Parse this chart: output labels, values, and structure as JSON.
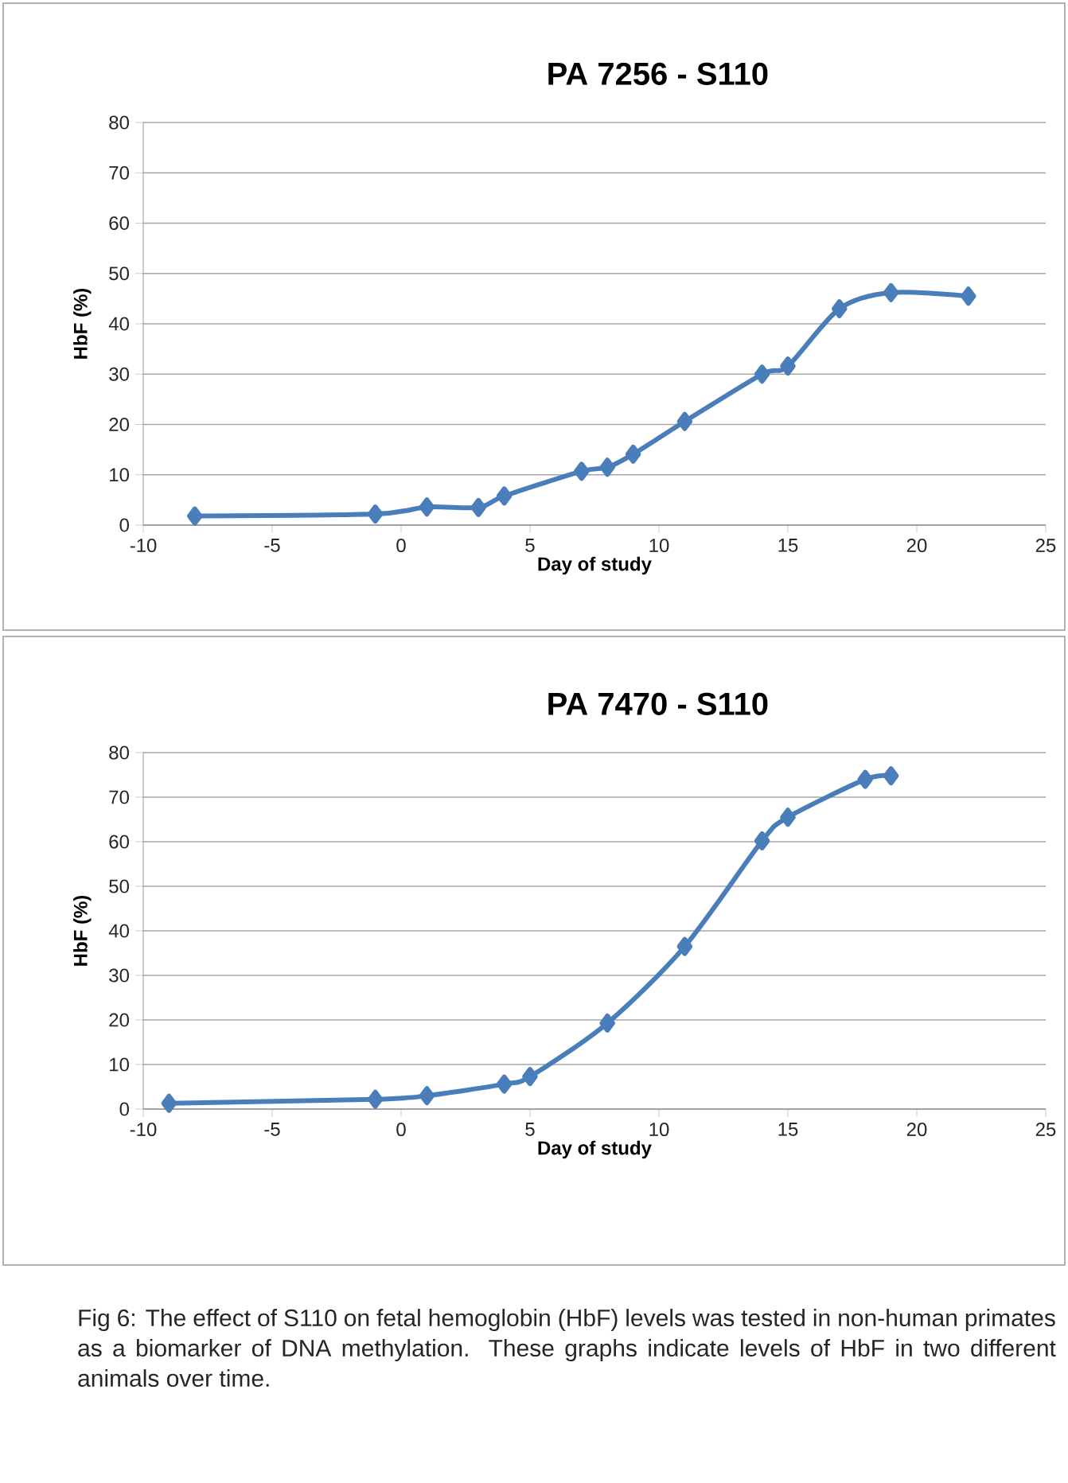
{
  "chart_data": [
    {
      "type": "line",
      "title": "PA 7256 - S110",
      "xlabel": "Day of study",
      "ylabel": "HbF (%)",
      "color": "#4a7ebb",
      "marker": "diamond",
      "grid": "y",
      "x": [
        -8,
        -1,
        1,
        3,
        4,
        7,
        8,
        9,
        11,
        14,
        15,
        17,
        19,
        22
      ],
      "values": [
        1.8,
        2.2,
        3.6,
        3.5,
        5.8,
        10.7,
        11.5,
        14.1,
        20.6,
        30,
        31.6,
        43,
        46.2,
        45.5
      ],
      "xlim": [
        -10,
        25
      ],
      "ylim": [
        0,
        80
      ],
      "xticks": [
        -10,
        -5,
        0,
        5,
        10,
        15,
        20,
        25
      ],
      "yticks": [
        0,
        10,
        20,
        30,
        40,
        50,
        60,
        70,
        80
      ]
    },
    {
      "type": "line",
      "title": "PA 7470 - S110",
      "xlabel": "Day of study",
      "ylabel": "HbF (%)",
      "color": "#4a7ebb",
      "marker": "diamond",
      "grid": "y",
      "x": [
        -9,
        -1,
        1,
        4,
        5,
        8,
        11,
        14,
        15,
        18,
        19
      ],
      "values": [
        1.3,
        2.2,
        3,
        5.6,
        7.3,
        19.3,
        36.5,
        60.2,
        65.5,
        74,
        74.8
      ],
      "xlim": [
        -10,
        25
      ],
      "ylim": [
        0,
        80
      ],
      "xticks": [
        -10,
        -5,
        0,
        5,
        10,
        15,
        20,
        25
      ],
      "yticks": [
        0,
        10,
        20,
        30,
        40,
        50,
        60,
        70,
        80
      ],
      "annotations": [
        "Fig 6: The effect of S110 on fetal hemoglobin (HbF) levels was tested in non-human primates as a biomarker of DNA methylation.  These graphs indicate levels of HbF in two different animals over time."
      ]
    }
  ]
}
